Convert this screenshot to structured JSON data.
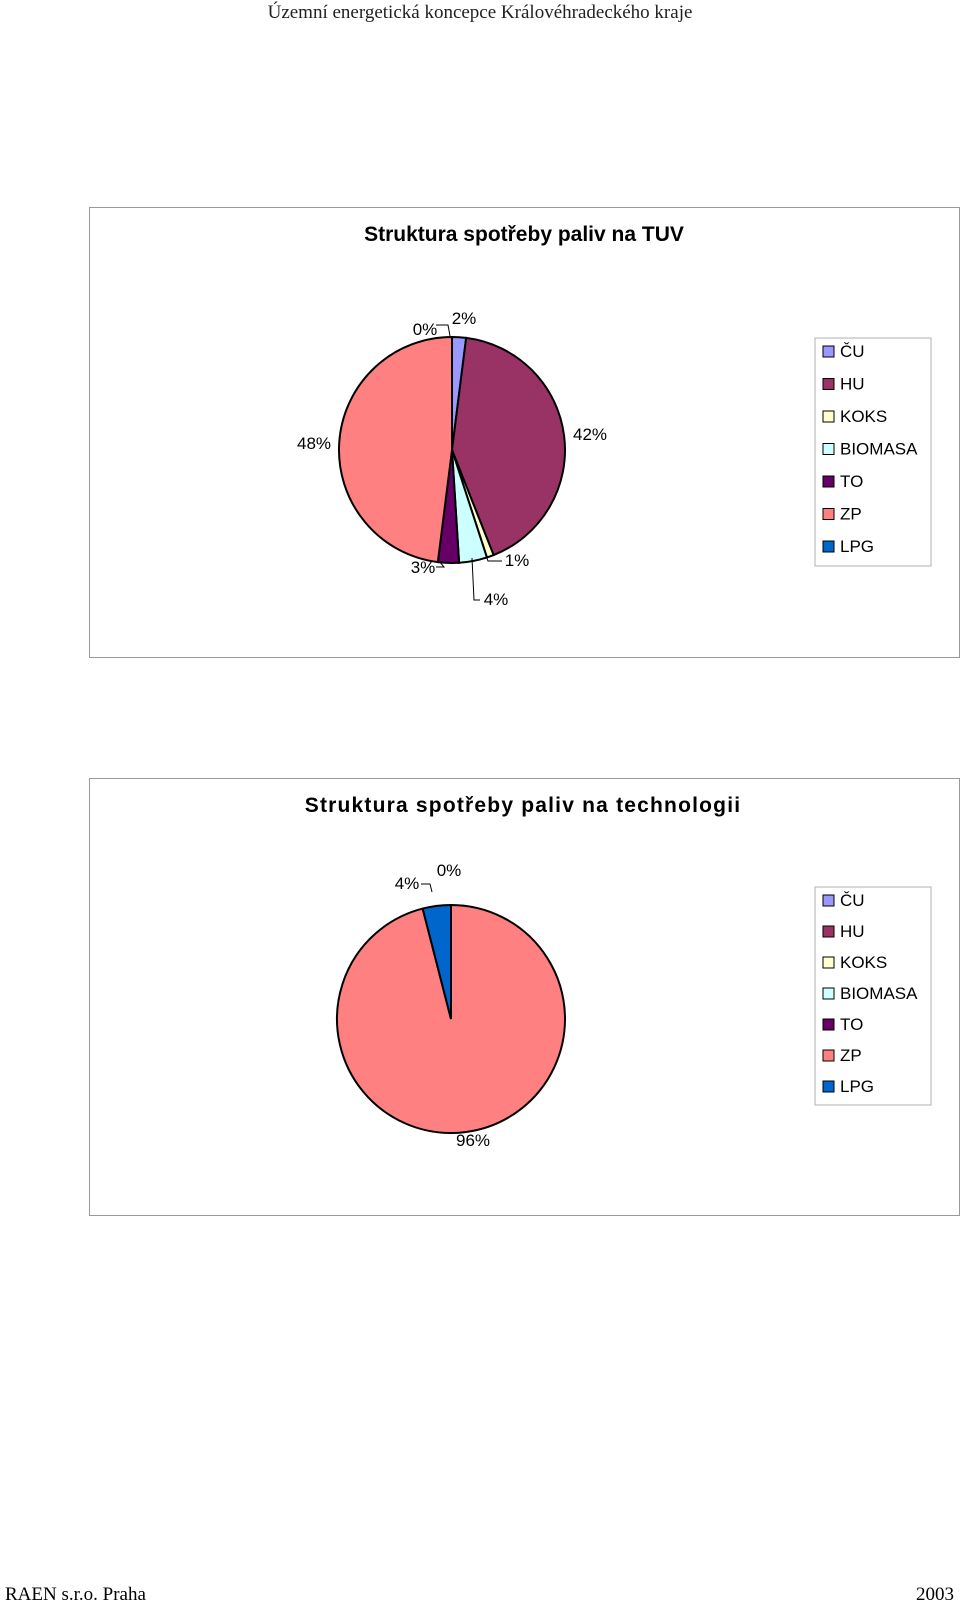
{
  "page": {
    "header": "Územní energetická koncepce Královéhradeckého kraje",
    "footer_left": "RAEN s.r.o. Praha",
    "footer_right": "2003"
  },
  "legend_colors": {
    "ČU": "#9999ff",
    "HU": "#993366",
    "KOKS": "#ffffcc",
    "BIOMASA": "#ccffff",
    "TO": "#660066",
    "ZP": "#ff8080",
    "LPG": "#0066cc"
  },
  "chart_data": [
    {
      "type": "pie",
      "title": "Struktura spotřeby paliv na TUV",
      "legend_position": "right",
      "categories": [
        "ČU",
        "HU",
        "KOKS",
        "BIOMASA",
        "TO",
        "ZP",
        "LPG"
      ],
      "values": [
        2,
        42,
        1,
        4,
        3,
        48,
        0
      ],
      "labels": [
        "2%",
        "42%",
        "1%",
        "4%",
        "3%",
        "48%",
        "0%"
      ]
    },
    {
      "type": "pie",
      "title": "Struktura spotřeby paliv na technologii",
      "legend_position": "right",
      "categories": [
        "ČU",
        "HU",
        "KOKS",
        "BIOMASA",
        "TO",
        "ZP",
        "LPG"
      ],
      "values": [
        0,
        0,
        0,
        0,
        0,
        96,
        4
      ],
      "labels": [
        "",
        "",
        "",
        "",
        "",
        "96%",
        "4%"
      ],
      "extra_label": "0%"
    }
  ]
}
